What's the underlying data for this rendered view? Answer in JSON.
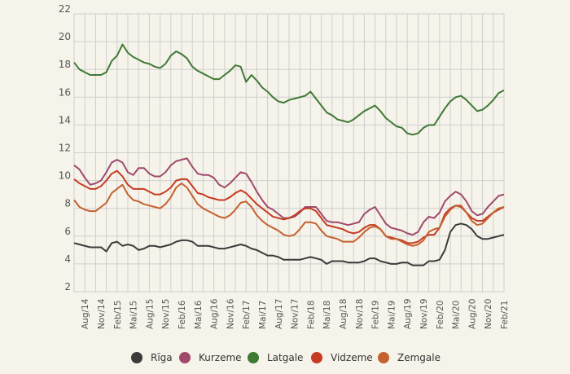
{
  "chart_data": {
    "type": "line",
    "title": "",
    "xlabel": "",
    "ylabel": "",
    "ylim": [
      2,
      22
    ],
    "y_ticks": [
      2,
      4,
      6,
      8,
      10,
      12,
      14,
      16,
      18,
      20,
      22
    ],
    "x_tick_labels": [
      "Aug/14",
      "Nov/14",
      "Feb/15",
      "Mai/15",
      "Aug/15",
      "Nov/15",
      "Feb/16",
      "Mai/16",
      "Aug/16",
      "Nov/16",
      "Feb/17",
      "Mai/17",
      "Aug/17",
      "Nov/17",
      "Feb/18",
      "Mai/18",
      "Aug/18",
      "Nov/18",
      "Feb/19",
      "Mai/19",
      "Aug/19",
      "Nov/19",
      "Feb/20",
      "Mai/20",
      "Aug/20",
      "Nov/20",
      "Feb/21"
    ],
    "grid": true,
    "legend_position": "bottom",
    "series": [
      {
        "name": "Rīga",
        "color": "#3b3b3b",
        "values": [
          5.5,
          5.4,
          5.3,
          5.2,
          5.2,
          5.2,
          4.9,
          5.5,
          5.6,
          5.3,
          5.4,
          5.3,
          5.0,
          5.1,
          5.3,
          5.3,
          5.2,
          5.3,
          5.4,
          5.6,
          5.7,
          5.7,
          5.6,
          5.3,
          5.3,
          5.3,
          5.2,
          5.1,
          5.1,
          5.2,
          5.3,
          5.4,
          5.3,
          5.1,
          5.0,
          4.8,
          4.6,
          4.6,
          4.5,
          4.3,
          4.3,
          4.3,
          4.3,
          4.4,
          4.5,
          4.4,
          4.3,
          4.0,
          4.2,
          4.2,
          4.2,
          4.1,
          4.1,
          4.1,
          4.2,
          4.4,
          4.4,
          4.2,
          4.1,
          4.0,
          4.0,
          4.1,
          4.1,
          3.9,
          3.9,
          3.9,
          4.2,
          4.2,
          4.3,
          5.0,
          6.3,
          6.8,
          6.9,
          6.8,
          6.5,
          6.0,
          5.8,
          5.8,
          5.9,
          6.0,
          6.1
        ]
      },
      {
        "name": "Kurzeme",
        "color": "#a04a6c",
        "values": [
          11.1,
          10.8,
          10.2,
          9.7,
          9.8,
          10.0,
          10.6,
          11.3,
          11.5,
          11.3,
          10.6,
          10.4,
          10.9,
          10.9,
          10.5,
          10.3,
          10.3,
          10.6,
          11.1,
          11.4,
          11.5,
          11.6,
          11.0,
          10.5,
          10.4,
          10.4,
          10.2,
          9.7,
          9.5,
          9.8,
          10.2,
          10.6,
          10.5,
          9.9,
          9.2,
          8.6,
          8.1,
          7.9,
          7.6,
          7.3,
          7.3,
          7.4,
          7.7,
          8.1,
          8.1,
          8.1,
          7.6,
          7.1,
          7.0,
          7.0,
          6.9,
          6.8,
          6.9,
          7.0,
          7.6,
          7.9,
          8.1,
          7.5,
          6.9,
          6.6,
          6.5,
          6.4,
          6.2,
          6.1,
          6.3,
          7.0,
          7.4,
          7.3,
          7.7,
          8.5,
          8.9,
          9.2,
          9.0,
          8.5,
          7.8,
          7.5,
          7.6,
          8.1,
          8.5,
          8.9,
          9.0
        ]
      },
      {
        "name": "Latgale",
        "color": "#3f7a35",
        "values": [
          18.5,
          18.0,
          17.8,
          17.6,
          17.6,
          17.6,
          17.8,
          18.6,
          19.0,
          19.8,
          19.2,
          18.9,
          18.7,
          18.5,
          18.4,
          18.2,
          18.1,
          18.4,
          19.0,
          19.3,
          19.1,
          18.8,
          18.2,
          17.9,
          17.7,
          17.5,
          17.3,
          17.3,
          17.6,
          17.9,
          18.3,
          18.2,
          17.1,
          17.6,
          17.2,
          16.7,
          16.4,
          16.0,
          15.7,
          15.6,
          15.8,
          15.9,
          16.0,
          16.1,
          16.4,
          15.9,
          15.4,
          14.9,
          14.7,
          14.4,
          14.3,
          14.2,
          14.4,
          14.7,
          15.0,
          15.2,
          15.4,
          15.0,
          14.5,
          14.2,
          13.9,
          13.8,
          13.4,
          13.3,
          13.4,
          13.8,
          14.0,
          14.0,
          14.6,
          15.2,
          15.7,
          16.0,
          16.1,
          15.8,
          15.4,
          15.0,
          15.1,
          15.4,
          15.8,
          16.3,
          16.5
        ]
      },
      {
        "name": "Vidzeme",
        "color": "#c73a23",
        "values": [
          10.1,
          9.8,
          9.6,
          9.4,
          9.4,
          9.6,
          10.0,
          10.5,
          10.7,
          10.3,
          9.7,
          9.4,
          9.4,
          9.4,
          9.2,
          9.0,
          9.0,
          9.2,
          9.5,
          10.0,
          10.1,
          10.1,
          9.6,
          9.1,
          9.0,
          8.8,
          8.7,
          8.6,
          8.6,
          8.8,
          9.1,
          9.3,
          9.1,
          8.7,
          8.3,
          8.0,
          7.7,
          7.4,
          7.3,
          7.2,
          7.3,
          7.5,
          7.8,
          8.0,
          8.0,
          7.8,
          7.3,
          6.8,
          6.7,
          6.6,
          6.5,
          6.3,
          6.2,
          6.3,
          6.6,
          6.8,
          6.8,
          6.5,
          6.0,
          5.9,
          5.8,
          5.7,
          5.5,
          5.5,
          5.6,
          5.9,
          6.1,
          6.1,
          6.6,
          7.6,
          8.0,
          8.2,
          8.1,
          7.7,
          7.3,
          7.1,
          7.1,
          7.4,
          7.7,
          7.9,
          8.1
        ]
      },
      {
        "name": "Zemgale",
        "color": "#c4612f",
        "values": [
          8.6,
          8.1,
          7.9,
          7.8,
          7.8,
          8.1,
          8.4,
          9.1,
          9.4,
          9.7,
          9.0,
          8.6,
          8.5,
          8.3,
          8.2,
          8.1,
          8.0,
          8.3,
          8.8,
          9.5,
          9.8,
          9.5,
          8.9,
          8.3,
          8.0,
          7.8,
          7.6,
          7.4,
          7.3,
          7.5,
          7.9,
          8.4,
          8.5,
          8.1,
          7.5,
          7.1,
          6.8,
          6.6,
          6.4,
          6.1,
          6.0,
          6.1,
          6.5,
          7.0,
          7.0,
          6.9,
          6.4,
          6.0,
          5.9,
          5.8,
          5.6,
          5.6,
          5.6,
          5.9,
          6.3,
          6.6,
          6.7,
          6.5,
          6.0,
          5.8,
          5.8,
          5.6,
          5.4,
          5.3,
          5.4,
          5.7,
          6.3,
          6.5,
          6.6,
          7.4,
          7.9,
          8.2,
          8.2,
          7.7,
          7.1,
          6.8,
          6.9,
          7.3,
          7.7,
          8.0,
          8.1
        ]
      }
    ]
  }
}
